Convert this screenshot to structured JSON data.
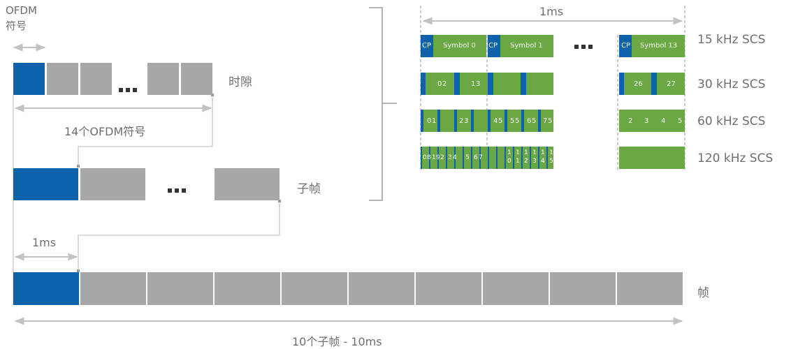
{
  "left": {
    "ofdm_symbol_label_line1": "OFDM",
    "ofdm_symbol_label_line2": "符号",
    "slot_label": "时隙",
    "fourteen_symbols_label": "14个OFDM符号",
    "subframe_label": "子帧",
    "one_ms_label": "1ms",
    "frame_label": "帧",
    "ten_subframes_label": "10个子帧 - 10ms"
  },
  "right": {
    "one_ms_label": "1ms",
    "rows": [
      {
        "scs": "15 kHz SCS",
        "labels": {
          "cp0": "CP",
          "sym0": "Symbol 0",
          "cp1": "CP",
          "sym1": "Symbol 1",
          "cp13": "CP",
          "sym13": "Symbol 13"
        }
      },
      {
        "scs": "30 kHz SCS",
        "labels": {
          "a": "0",
          "b": "2",
          "c": "1",
          "d": "3",
          "e": "26",
          "f": "27"
        }
      },
      {
        "scs": "60 kHz SCS",
        "labels": {
          "a": "0",
          "b": "1",
          "c": "2",
          "d": "3",
          "e": "4",
          "f": "5",
          "g": "5",
          "h": "5",
          "i": "6",
          "j": "5",
          "k": "7",
          "l": "5",
          "m": "2",
          "n": "3",
          "o": "4",
          "p": "5"
        }
      },
      {
        "scs": "120 kHz SCS",
        "labels": {
          "a": "0",
          "b": "8",
          "c": "1",
          "d": "9",
          "e": "2",
          "f": "3",
          "g": "4",
          "h": "5",
          "i": "6",
          "j": "7",
          "k1": "1",
          "k2": "0",
          "l1": "1",
          "l2": "1",
          "m1": "1",
          "m2": "2",
          "n1": "1",
          "n2": "3",
          "o1": "1",
          "o2": "4",
          "p1": "1",
          "p2": "5"
        }
      }
    ]
  },
  "colors": {
    "blue": "#0d63ab",
    "gray": "#a7a7a9",
    "green": "#6aa844",
    "line": "#bdbdbd"
  }
}
